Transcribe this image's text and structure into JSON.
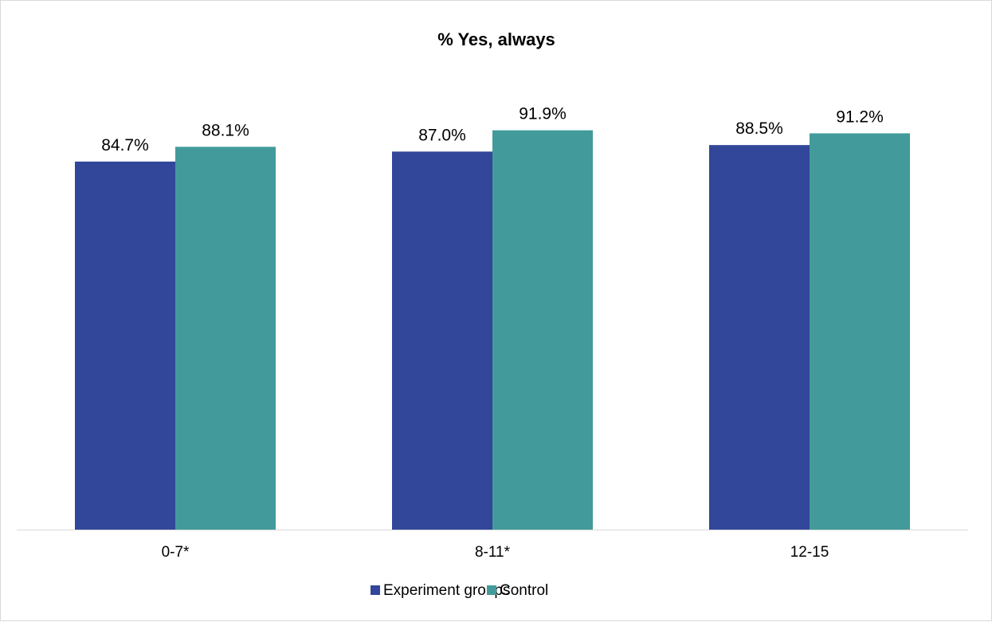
{
  "chart_data": {
    "type": "bar",
    "title": "% Yes, always",
    "categories": [
      "0-7*",
      "8-11*",
      "12-15"
    ],
    "series": [
      {
        "name": "Experiment groups",
        "color": "#32469a",
        "values": [
          84.7,
          87.0,
          88.5
        ],
        "labels": [
          "84.7%",
          "87.0%",
          "88.5%"
        ]
      },
      {
        "name": "Control",
        "color": "#429b9a",
        "values": [
          88.1,
          91.9,
          91.2
        ],
        "labels": [
          "88.1%",
          "91.9%",
          "91.2%"
        ]
      }
    ],
    "ylim": [
      0,
      100
    ],
    "grid": false,
    "legend_position": "bottom"
  }
}
